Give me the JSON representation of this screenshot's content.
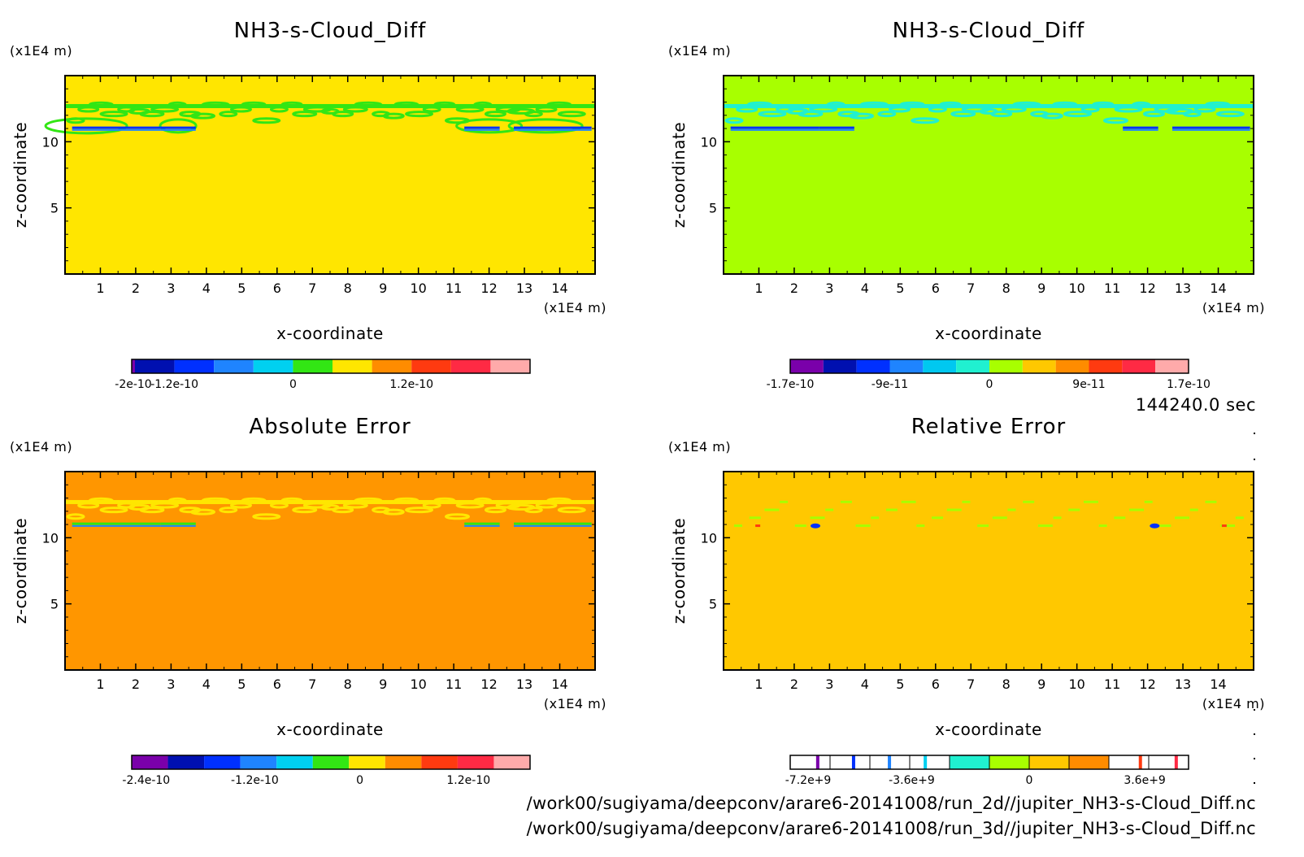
{
  "panels": [
    {
      "id": "nh3-2d",
      "title": "NH3-s-Cloud_Diff",
      "xlabel": "x-coordinate",
      "ylabel": "z-coordinate",
      "x_unit": "(x1E4 m)",
      "y_unit": "(x1E4 m)",
      "background_color": "#ffe600",
      "colorbar": {
        "colors": [
          "#7a00aa",
          "#0010b0",
          "#0030ff",
          "#1f84ff",
          "#00d0f0",
          "#32e614",
          "#ffe600",
          "#ff8c00",
          "#ff3a10",
          "#ff2a44",
          "#ffaaaa"
        ],
        "first_narrow": true,
        "tick_labels": [
          "-2e-10",
          "-1.2e-10",
          "0",
          "1.2e-10"
        ],
        "tick_pos": [
          0,
          2,
          5,
          8
        ]
      },
      "layers": [
        {
          "color": "#32e614",
          "type": "band",
          "row": 1
        },
        {
          "color": "#32e614",
          "type": "blob",
          "side": "both"
        },
        {
          "color": "#0030ff",
          "type": "streak",
          "side": "both"
        }
      ]
    },
    {
      "id": "nh3-3d",
      "title": "NH3-s-Cloud_Diff",
      "xlabel": "x-coordinate",
      "ylabel": "z-coordinate",
      "x_unit": "(x1E4 m)",
      "y_unit": "(x1E4 m)",
      "background_color": "#a8ff00",
      "colorbar": {
        "colors": [
          "#7a00aa",
          "#0010b0",
          "#0030ff",
          "#1f84ff",
          "#00c8f0",
          "#20f0d0",
          "#a8ff00",
          "#ffc800",
          "#ff8c00",
          "#ff3a10",
          "#ff2a44",
          "#ffaaaa"
        ],
        "first_narrow": false,
        "tick_labels": [
          "-1.7e-10",
          "-9e-11",
          "0",
          "9e-11",
          "1.7e-10"
        ],
        "tick_pos": [
          0,
          3,
          6,
          9,
          12
        ]
      },
      "layers": [
        {
          "color": "#20f0d0",
          "type": "band",
          "row": 1
        },
        {
          "color": "#0030ff",
          "type": "streak",
          "side": "both"
        }
      ]
    },
    {
      "id": "abs-error",
      "title": "Absolute Error",
      "xlabel": "x-coordinate",
      "ylabel": "z-coordinate",
      "x_unit": "(x1E4 m)",
      "y_unit": "(x1E4 m)",
      "background_color": "#ff9600",
      "colorbar": {
        "colors": [
          "#7a00aa",
          "#0010b0",
          "#0030ff",
          "#1f84ff",
          "#00d0f0",
          "#32e614",
          "#ffe600",
          "#ff8c00",
          "#ff3a10",
          "#ff2a44",
          "#ffaaaa"
        ],
        "first_narrow": false,
        "tick_labels": [
          "-2.4e-10",
          "-1.2e-10",
          "0",
          "1.2e-10"
        ],
        "tick_pos": [
          0.4,
          3.4,
          6.3,
          9.3
        ]
      },
      "layers": [
        {
          "color": "#ffe600",
          "type": "band",
          "row": 1
        },
        {
          "color": "#32e614",
          "type": "streak",
          "side": "both"
        }
      ]
    },
    {
      "id": "rel-error",
      "title": "Relative Error",
      "xlabel": "x-coordinate",
      "ylabel": "z-coordinate",
      "x_unit": "(x1E4 m)",
      "y_unit": "(x1E4 m)",
      "background_color": "#ffc800",
      "colorbar": {
        "colors": [
          "#ffffff",
          "#ffffff",
          "#ffffff",
          "#ffffff",
          "#20f0d0",
          "#a8ff00",
          "#ffc800",
          "#ff8c00",
          "#ffffff",
          "#ffffff"
        ],
        "first_narrow": false,
        "stripes": [
          {
            "at": 0.65,
            "color": "#7a00aa"
          },
          {
            "at": 1.55,
            "color": "#0030ff"
          },
          {
            "at": 2.45,
            "color": "#1f84ff"
          },
          {
            "at": 3.35,
            "color": "#00d0f0"
          },
          {
            "at": 8.75,
            "color": "#ff3a10"
          },
          {
            "at": 9.65,
            "color": "#ff2a44"
          }
        ],
        "tick_labels": [
          "-7.2e+9",
          "-3.6e+9",
          "0",
          "3.6e+9"
        ],
        "tick_pos": [
          0.45,
          3.05,
          6.0,
          8.9
        ]
      },
      "layers": [
        {
          "color": "#a8ff00",
          "type": "speck"
        },
        {
          "color": "#0030ff",
          "type": "spot"
        }
      ]
    }
  ],
  "chart_data": [
    {
      "type": "heatmap",
      "title": "NH3-s-Cloud_Diff",
      "xlabel": "x-coordinate",
      "ylabel": "z-coordinate",
      "x_unit": "(x1E4 m)",
      "y_unit": "(x1E4 m)",
      "xlim": [
        0,
        15
      ],
      "ylim": [
        0,
        15
      ],
      "x_ticks": [
        1,
        2,
        3,
        4,
        5,
        6,
        7,
        8,
        9,
        10,
        11,
        12,
        13,
        14
      ],
      "y_ticks": [
        5,
        10
      ],
      "colorbar_ticks": [
        "-2e-10",
        "-1.2e-10",
        "0",
        "1.2e-10"
      ]
    },
    {
      "type": "heatmap",
      "title": "NH3-s-Cloud_Diff",
      "xlabel": "x-coordinate",
      "ylabel": "z-coordinate",
      "x_unit": "(x1E4 m)",
      "y_unit": "(x1E4 m)",
      "xlim": [
        0,
        15
      ],
      "ylim": [
        0,
        15
      ],
      "x_ticks": [
        1,
        2,
        3,
        4,
        5,
        6,
        7,
        8,
        9,
        10,
        11,
        12,
        13,
        14
      ],
      "y_ticks": [
        5,
        10
      ],
      "colorbar_ticks": [
        "-1.7e-10",
        "-9e-11",
        "0",
        "9e-11",
        "1.7e-10"
      ]
    },
    {
      "type": "heatmap",
      "title": "Absolute Error",
      "xlabel": "x-coordinate",
      "ylabel": "z-coordinate",
      "x_unit": "(x1E4 m)",
      "y_unit": "(x1E4 m)",
      "xlim": [
        0,
        15
      ],
      "ylim": [
        0,
        15
      ],
      "x_ticks": [
        1,
        2,
        3,
        4,
        5,
        6,
        7,
        8,
        9,
        10,
        11,
        12,
        13,
        14
      ],
      "y_ticks": [
        5,
        10
      ],
      "colorbar_ticks": [
        "-2.4e-10",
        "-1.2e-10",
        "0",
        "1.2e-10"
      ]
    },
    {
      "type": "heatmap",
      "title": "Relative Error",
      "xlabel": "x-coordinate",
      "ylabel": "z-coordinate",
      "x_unit": "(x1E4 m)",
      "y_unit": "(x1E4 m)",
      "xlim": [
        0,
        15
      ],
      "ylim": [
        0,
        15
      ],
      "x_ticks": [
        1,
        2,
        3,
        4,
        5,
        6,
        7,
        8,
        9,
        10,
        11,
        12,
        13,
        14
      ],
      "y_ticks": [
        5,
        10
      ],
      "colorbar_ticks": [
        "-7.2e+9",
        "-3.6e+9",
        "0",
        "3.6e+9"
      ]
    }
  ],
  "time_label": "144240.0 sec",
  "file_paths": [
    "/work00/sugiyama/deepconv/arare6-20141008/run_2d//jupiter_NH3-s-Cloud_Diff.nc",
    "/work00/sugiyama/deepconv/arare6-20141008/run_3d//jupiter_NH3-s-Cloud_Diff.nc"
  ]
}
